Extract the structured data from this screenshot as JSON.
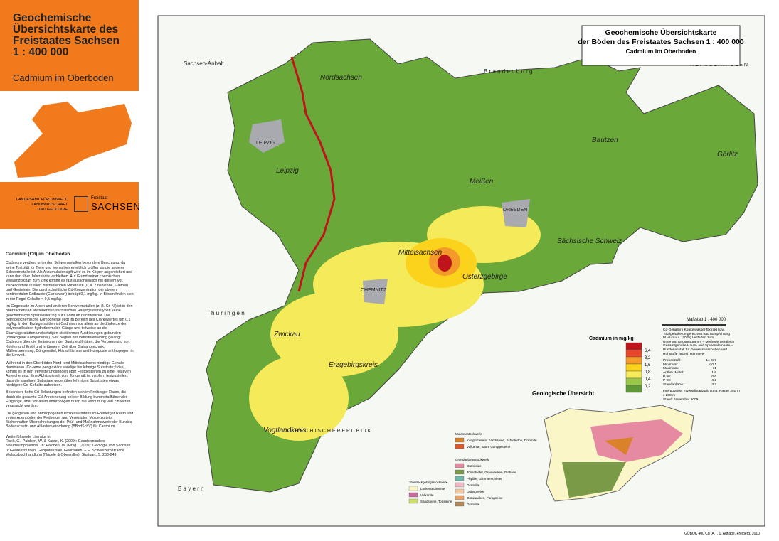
{
  "sidebar": {
    "title_lines": [
      "Geochemische",
      "Übersichtskarte des",
      "Freistaates Sachsen",
      "1 : 400 000"
    ],
    "subtitle": "Cadmium im Oberboden",
    "agency_lines": [
      "LANDESAMT FÜR UMWELT,",
      "LANDWIRTSCHAFT",
      "UND GEOLOGIE"
    ],
    "logo_small": "Freistaat",
    "logo": "SACHSEN",
    "text_title": "Cadmium (Cd) im Oberboden",
    "paragraphs": [
      "Cadmium verdient unter den Schwermetallen besondere Beachtung, da seine Toxizität für Tiere und Menschen erheblich größer als die anderer Schwermetalle ist. Als Akkumulationsgift wird es im Körper angereichert und kann dort über Jahrzehnte verbleiben. Auf Grund seiner chemischen Verwandtschaft zum Zink kommt es fast ausschließlich mit diesem vor, insbesondere in allen zinkführenden Mineralen (u. a. Zinkblende, Galmei) und Gesteinen. Die durchschnittliche Cd-Konzentration der oberen kontinentalen Erdkruste (Clarkewert) beträgt 0,1 mg/kg. In Böden finden sich in der Regel Gehalte < 0,5 mg/kg.",
      "Im Gegensatz zu Arsen und anderen Schwermetallen (z. B. Cr, Ni) ist in den oberflächennah anstehenden sächsischen Hauptgesteinstypen keine geochemische Spezialisierung auf Cadmium nachweisbar. Die petrogeochemische Komponente liegt im Bereich des Clarkewertes um 0,1 mg/kg. In den Erzlagerstätten ist Cadmium vor allem an die Zinkerze der polymetallischen hydrothermalen Gänge und teilweise an die Skarnlagerstätten und stratigen-stratiformen Ausbildungen gebunden (chalkogene Komponente). Seit Beginn der Industrialisierung gelangt Cadmium über die Emissionen der Buntmetallhütten, die Verbrennung von Kohlen und Erdöl und in jüngerer Zeit über Galvanotechnik, Müllverbrennung, Düngemittel, Klärschlämme und Komposte anthropogen in die Umwelt.",
      "Während in den Oberböden Nord- und Mittelsachsens niedrige Gehalte dominieren (Cd-arme periglaziäre sandige bis lehmige Substrate; Löss), kommt es in den Verwitterungsböden über Festgesteinen zu einer relativen Anreicherung. Eine Abhängigkeit vom Tongehalt ist insofern festzustellen, dass die sandigen Substrate gegenüber lehmigen Substraten etwas niedrigere Cd-Gehalte aufweisen.",
      "Besonders hohe Cd-Belastungen befinden sich im Freiberger Raum, die durch die gesamte Cd-Anreicherung bei der Bildung buntmetallführender Erzgänge, aber vor allem anthropogen durch die Verhüttung von Zinkerzen verursacht wurden.",
      "Die geogenen und anthropogenen Prozesse führen im Freiberger Raum und in den Auenböden der Freiberger und Vereinigten Mulde zu teils flächenhaften Überschreitungen der Prüf- und Maßnahmewerte der Bundes-Bodenschutz- und Altlastenverordnung (BBodSchV) für Cadmium."
    ],
    "literature_title": "Weiterführende Literatur in:",
    "literature": "Rank, G., Palchen, W. & Kardel, K. (2009): Geochemisches Naturraumpotenzial. In: Palchen, W. (Hrsg.) (2009): Geologie von Sachsen II: Georessourcen, Geopotenziale, Georisiken. – E. Schweizerbart'sche Verlagsbuchhandlung (Nägele & Obermiller), Stuttgart, S. 233-249."
  },
  "map_header": {
    "title_lines": [
      "Geochemische Übersichtskarte",
      "der Böden des Freistaates Sachsen 1 : 400 000"
    ],
    "subtitle": "Cadmium im Oberboden"
  },
  "places": [
    "Nordsachsen",
    "Leipzig",
    "LEIPZIG",
    "Meißen",
    "DRESDEN",
    "Bautzen",
    "Görlitz",
    "Sächsische Schweiz",
    "Mittelsachsen",
    "Osterzgebirge",
    "CHEMNITZ",
    "Zwickau",
    "Erzgebirgskreis",
    "Vogtlandkreis",
    "Sachsen-Anhalt",
    "B r a n d e n b u r g",
    "R E P U B L I K  P O L E N",
    "T h ü r i n g e n",
    "T S C H E C H I S C H E  R E P U B L I K",
    "B a y e r n"
  ],
  "legend": {
    "title": "Cadmium in mg/kg",
    "thresholds": [
      "6,4",
      "3,2",
      "1,6",
      "0,8",
      "0,4",
      "0,2"
    ],
    "colors": [
      "#c0141c",
      "#e8452a",
      "#f39a2a",
      "#fcd31c",
      "#f4ea5a",
      "#9cc84a",
      "#5d9a35"
    ]
  },
  "info": "Cd-Gehalt im Königswasser-Extrakt bzw. Totalgehalte umgerechnet nach Empfehlung M.v.Lin u.a. (2005) Leitfaden zum Untersuchungsprogramm – Methodenvergleich Gesamtgehalte Haupt- und Spurenelemente – Bundesanstalt für Geowissenschaften und Rohstoffe (BGR), Hannover",
  "stats": [
    [
      "Probenzahl:",
      "14 679"
    ],
    [
      "Minimum:",
      "< 0,1"
    ],
    [
      "Maximum:",
      "71"
    ],
    [
      "Arithm. Mittel:",
      "1,6"
    ],
    [
      "P 50:",
      "0,6"
    ],
    [
      "P 90:",
      "4,2"
    ],
    [
      "Standardabw.:",
      "3,7"
    ]
  ],
  "interpolation": "Interpolation: Inversdistanzwichtung; Raster 250 m x 250 m",
  "date": "Stand: November 2009",
  "scale": "Maßstab 1 : 400 000",
  "geology": {
    "title": "Geologische Übersicht",
    "groups": [
      {
        "title": "Molassestockwerk",
        "items": [
          [
            "Konglomerate, Sandsteine, Schieferton, Dolomite",
            "#d9822b"
          ],
          [
            "Vulkanite, saure Ganggesteine",
            "#e2572a"
          ]
        ]
      },
      {
        "title": "Grundgebirgsstockwerk",
        "items": [
          [
            "Granitoide",
            "#e58aa0"
          ],
          [
            "Tonschiefer, Grauwacken, Diabase",
            "#7a9a48"
          ],
          [
            "Phyllite, Glimmerschiefer",
            "#6db8a8"
          ],
          [
            "Granulite",
            "#f2b9c8"
          ],
          [
            "Orthogneise",
            "#f4c9a4"
          ],
          [
            "Grauwacken, Paragneise",
            "#e7a26a"
          ],
          [
            "Granulite",
            "#b48a5c"
          ]
        ]
      },
      {
        "title": "Tafeldeckgebirgsstockwerk",
        "items": [
          [
            "Lockersedimente",
            "#fbf6c8"
          ],
          [
            "Vulkanite",
            "#c76a9e"
          ],
          [
            "Sandsteine, Tonsteine",
            "#cfe06a"
          ]
        ]
      }
    ]
  },
  "footer": "GÜBOK 400 Cd_A.T. 1. Auflage, Freiberg, 2010"
}
